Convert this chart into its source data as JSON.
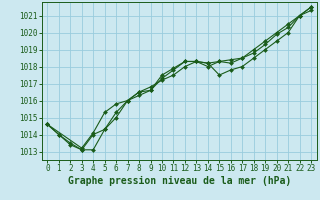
{
  "title": "Graphe pression niveau de la mer (hPa)",
  "bg_color": "#cce8f0",
  "grid_color": "#99ccdd",
  "line_color": "#1a5c1a",
  "marker_color": "#1a5c1a",
  "xlim": [
    -0.5,
    23.5
  ],
  "ylim": [
    1012.5,
    1021.8
  ],
  "yticks": [
    1013,
    1014,
    1015,
    1016,
    1017,
    1018,
    1019,
    1020,
    1021
  ],
  "xticks": [
    0,
    1,
    2,
    3,
    4,
    5,
    6,
    7,
    8,
    9,
    10,
    11,
    12,
    13,
    14,
    15,
    16,
    17,
    18,
    19,
    20,
    21,
    22,
    23
  ],
  "series1_x": [
    0,
    1,
    2,
    3,
    4,
    5,
    6,
    7,
    8,
    9,
    10,
    11,
    12,
    13,
    14,
    15,
    16,
    17,
    18,
    19,
    20,
    21,
    22,
    23
  ],
  "series1_y": [
    1014.6,
    1014.0,
    1013.5,
    1013.1,
    1014.0,
    1014.3,
    1015.3,
    1016.0,
    1016.5,
    1016.6,
    1017.3,
    1017.8,
    1018.3,
    1018.3,
    1018.2,
    1018.3,
    1018.4,
    1018.5,
    1019.0,
    1019.5,
    1020.0,
    1020.5,
    1021.0,
    1021.3
  ],
  "series2_x": [
    0,
    1,
    2,
    3,
    4,
    5,
    6,
    7,
    8,
    9,
    10,
    11,
    12,
    13,
    14,
    15,
    16,
    17,
    18,
    19,
    20,
    21,
    22,
    23
  ],
  "series2_y": [
    1014.6,
    1014.0,
    1013.4,
    1013.1,
    1013.1,
    1014.3,
    1015.0,
    1016.0,
    1016.3,
    1016.6,
    1017.5,
    1017.9,
    1018.3,
    1018.3,
    1018.0,
    1018.3,
    1018.2,
    1018.5,
    1018.8,
    1019.3,
    1019.9,
    1020.3,
    1021.0,
    1021.5
  ],
  "series3_x": [
    0,
    3,
    4,
    5,
    6,
    7,
    8,
    9,
    10,
    11,
    12,
    13,
    14,
    15,
    16,
    17,
    18,
    19,
    20,
    21,
    22,
    23
  ],
  "series3_y": [
    1014.6,
    1013.2,
    1014.1,
    1015.3,
    1015.8,
    1016.0,
    1016.5,
    1016.8,
    1017.2,
    1017.5,
    1018.0,
    1018.3,
    1018.2,
    1017.5,
    1017.8,
    1018.0,
    1018.5,
    1019.0,
    1019.5,
    1020.0,
    1021.0,
    1021.5
  ],
  "title_fontsize": 7,
  "tick_fontsize": 5.5
}
